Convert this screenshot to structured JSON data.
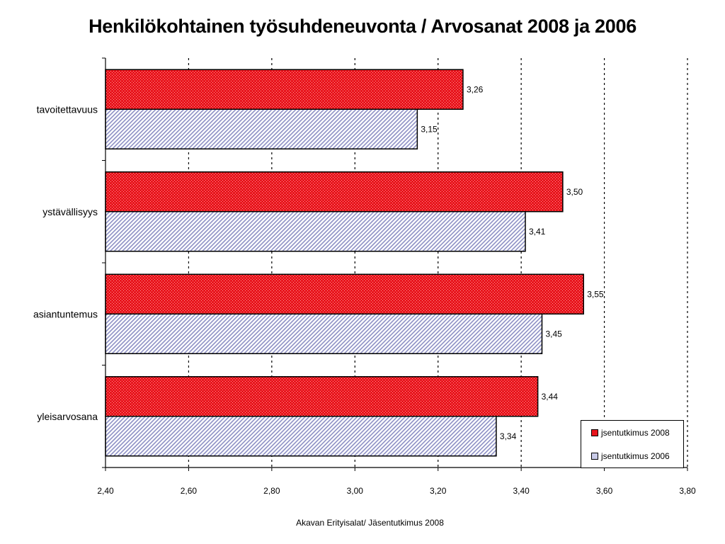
{
  "chart_data": {
    "type": "bar",
    "orientation": "horizontal",
    "title": "Henkilökohtainen työsuhdeneuvonta / Arvosanat 2008 ja 2006",
    "categories": [
      "tavoitettavuus",
      "ystävällisyys",
      "asiantuntemus",
      "yleisarvosana"
    ],
    "series": [
      {
        "name": "jsentutkimus 2008",
        "values": [
          3.26,
          3.5,
          3.55,
          3.44
        ],
        "labels": [
          "3,26",
          "3,50",
          "3,55",
          "3,44"
        ],
        "color": "#e8141c"
      },
      {
        "name": "jsentutkimus 2006",
        "values": [
          3.15,
          3.41,
          3.45,
          3.34
        ],
        "labels": [
          "3,15",
          "3,41",
          "3,45",
          "3,34"
        ],
        "color": "#c9cbe8"
      }
    ],
    "x_ticks": [
      2.4,
      2.6,
      2.8,
      3.0,
      3.2,
      3.4,
      3.6,
      3.8
    ],
    "x_tick_labels": [
      "2,40",
      "2,60",
      "2,80",
      "3,00",
      "3,20",
      "3,40",
      "3,60",
      "3,80"
    ],
    "xlim": [
      2.4,
      3.8
    ],
    "grid": "vertical dashed",
    "legend": "bottom-right",
    "source": "Akavan Erityisalat/ Jäsentutkimus 2008"
  }
}
